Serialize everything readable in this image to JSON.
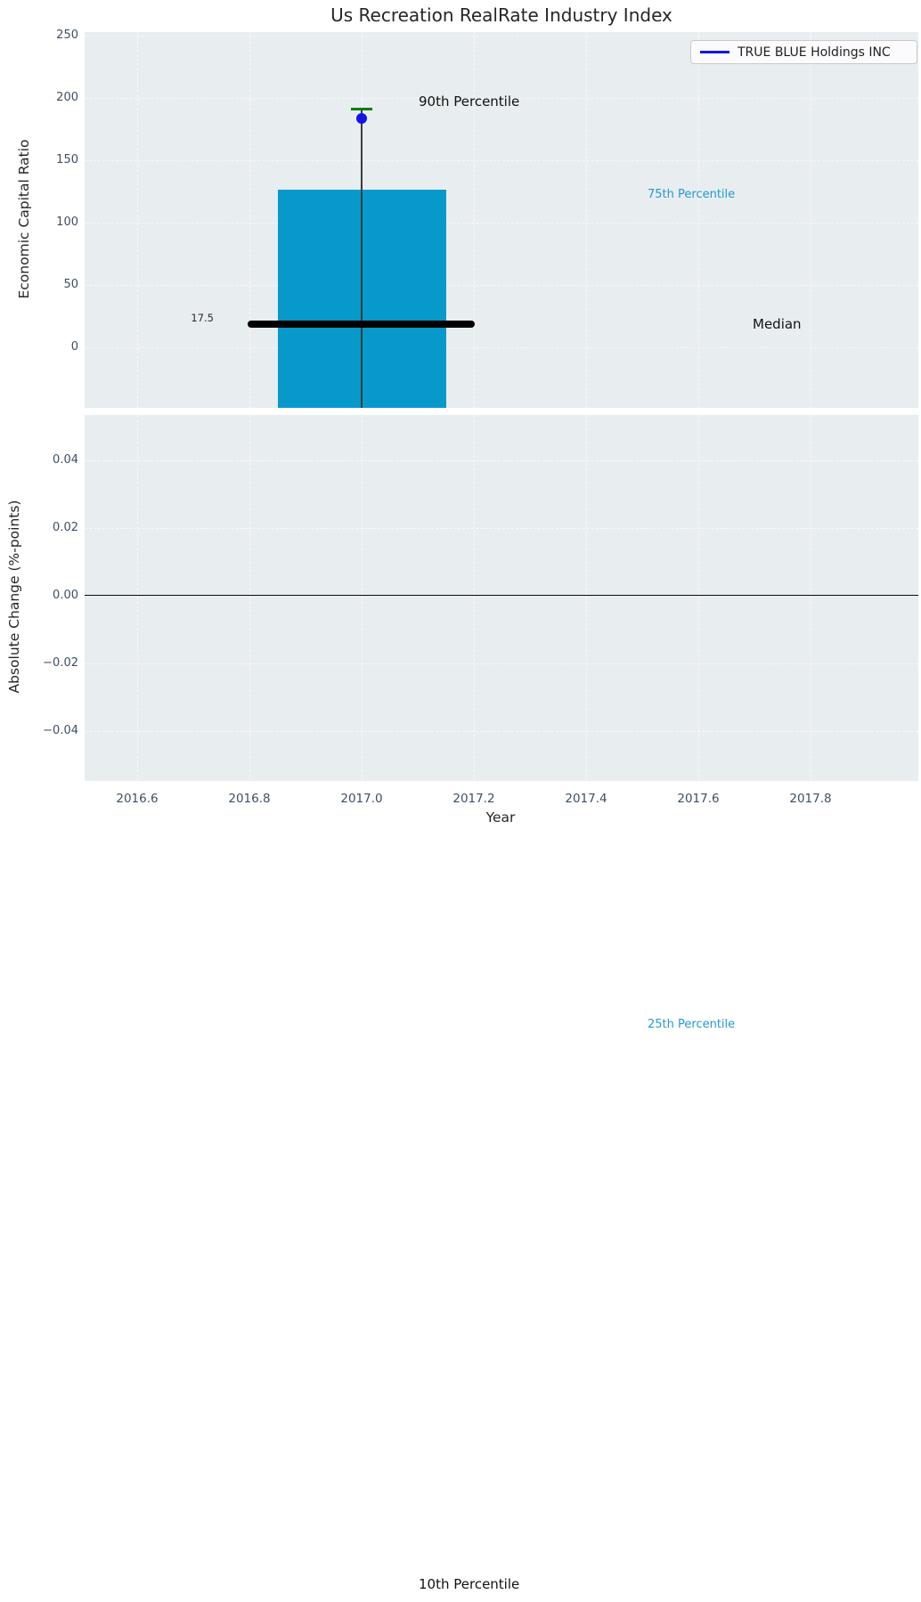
{
  "title": "Us Recreation RealRate Industry Index",
  "legend": {
    "label": "TRUE BLUE Holdings INC",
    "line_color": "#1414e8"
  },
  "top_axis": {
    "ylabel": "Economic Capital Ratio",
    "yticks": [
      "250",
      "200",
      "150",
      "100",
      "50",
      "0"
    ]
  },
  "bottom_axis": {
    "ylabel": "Absolute Change (%-points)",
    "xlabel": "Year",
    "yticks": [
      "0.04",
      "0.02",
      "0.00",
      "−0.02",
      "−0.04"
    ],
    "xticks": [
      "2016.6",
      "2016.8",
      "2017.0",
      "2017.2",
      "2017.4",
      "2017.6",
      "2017.8"
    ]
  },
  "annotations": {
    "p90": "90th Percentile",
    "p75": "75th Percentile",
    "median_label": "Median",
    "p25": "25th Percentile",
    "p10": "10th Percentile",
    "median_value": "17.5"
  },
  "colors": {
    "bar": "#0899cb",
    "plot_background": "#e8edf0",
    "whisker_cap_green": "#018001",
    "company_marker_blue": "#1414e8",
    "median_black": "#000000",
    "percentile_text_cyan": "#2699cd",
    "tick_text": "#3d4f63"
  },
  "chart_data": {
    "type": "bar",
    "title": "Us Recreation RealRate Industry Index",
    "legend_entries": [
      "TRUE BLUE Holdings INC"
    ],
    "grid": true,
    "subplots": [
      {
        "ylabel": "Economic Capital Ratio",
        "ylim": [
          -48,
          253
        ],
        "yticks": [
          0,
          50,
          100,
          150,
          200,
          250
        ],
        "bars": [
          {
            "x": 2017.0,
            "width_years": 0.3,
            "top_value_75th_percentile": 127,
            "bottom": "clipped below visible axis"
          }
        ],
        "median": {
          "x": 2017.0,
          "value": 17.5,
          "data_label": "17.5"
        },
        "whisker_90th_percentile": 190,
        "company_point": {
          "name": "TRUE BLUE Holdings INC",
          "x": 2017.0,
          "value": 184,
          "marker": "circle"
        },
        "annotations": [
          "90th Percentile",
          "75th Percentile",
          "Median",
          "25th Percentile",
          "10th Percentile"
        ]
      },
      {
        "ylabel": "Absolute Change (%-points)",
        "ylim": [
          -0.055,
          0.055
        ],
        "yticks": [
          -0.04,
          -0.02,
          0.0,
          0.02,
          0.04
        ],
        "xlabel": "Year",
        "xlim": [
          2016.5,
          2018.0
        ],
        "xticks": [
          2016.6,
          2016.8,
          2017.0,
          2017.2,
          2017.4,
          2017.6,
          2017.8
        ],
        "series": [],
        "zero_line": 0.0
      }
    ]
  }
}
